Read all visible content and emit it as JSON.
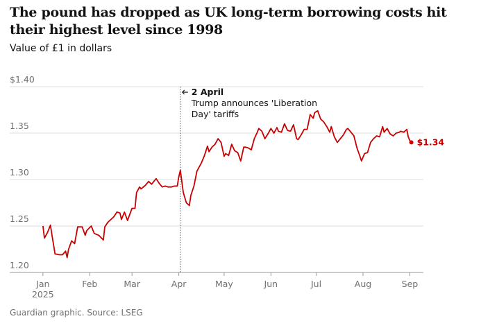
{
  "chart_data": {
    "type": "line",
    "title": "The pound has dropped as UK long-term borrowing costs hit their highest level since 1998",
    "subtitle": "Value of £1 in dollars",
    "source": "Guardian graphic. Source: LSEG",
    "color": "#c70000",
    "grid": true,
    "x": [
      0,
      1,
      3,
      5,
      6,
      8,
      11,
      13,
      15,
      16,
      17,
      19,
      21,
      23,
      26,
      28,
      29,
      32,
      34,
      37,
      40,
      41,
      43,
      45,
      47,
      49,
      51,
      52,
      54,
      56,
      59,
      61,
      62,
      64,
      65,
      68,
      70,
      72,
      74,
      75,
      77,
      79,
      81,
      83,
      85,
      87,
      89,
      90,
      91,
      93,
      95,
      97,
      98,
      100,
      102,
      105,
      107,
      109,
      110,
      112,
      114,
      116,
      118,
      120,
      121,
      123,
      125,
      127,
      129,
      131,
      133,
      134,
      136,
      138,
      140,
      142,
      143,
      145,
      147,
      149,
      151,
      153,
      155,
      156,
      158,
      160,
      162,
      164,
      166,
      168,
      169,
      171,
      173,
      175,
      177,
      179,
      180,
      182,
      184,
      186,
      188,
      190,
      191,
      193,
      195,
      197,
      199,
      201,
      202,
      204,
      206,
      208,
      210,
      211,
      213,
      215,
      217,
      219,
      221,
      223,
      225,
      226,
      228,
      230,
      232,
      234,
      236,
      237,
      239,
      241,
      242,
      243,
      244
    ],
    "values": [
      1.25,
      1.237,
      1.243,
      1.251,
      1.24,
      1.22,
      1.219,
      1.219,
      1.223,
      1.216,
      1.225,
      1.234,
      1.231,
      1.249,
      1.249,
      1.24,
      1.245,
      1.25,
      1.242,
      1.24,
      1.235,
      1.249,
      1.254,
      1.257,
      1.26,
      1.265,
      1.264,
      1.257,
      1.265,
      1.256,
      1.269,
      1.269,
      1.286,
      1.292,
      1.29,
      1.294,
      1.298,
      1.295,
      1.299,
      1.301,
      1.296,
      1.292,
      1.293,
      1.292,
      1.292,
      1.293,
      1.293,
      1.303,
      1.31,
      1.286,
      1.275,
      1.272,
      1.283,
      1.293,
      1.309,
      1.318,
      1.326,
      1.336,
      1.33,
      1.335,
      1.338,
      1.344,
      1.34,
      1.325,
      1.328,
      1.326,
      1.338,
      1.331,
      1.329,
      1.32,
      1.335,
      1.335,
      1.334,
      1.332,
      1.344,
      1.351,
      1.355,
      1.352,
      1.344,
      1.349,
      1.355,
      1.35,
      1.356,
      1.352,
      1.351,
      1.36,
      1.353,
      1.352,
      1.359,
      1.344,
      1.343,
      1.348,
      1.354,
      1.354,
      1.37,
      1.366,
      1.372,
      1.374,
      1.365,
      1.362,
      1.357,
      1.351,
      1.357,
      1.346,
      1.34,
      1.344,
      1.348,
      1.354,
      1.355,
      1.351,
      1.347,
      1.334,
      1.325,
      1.32,
      1.328,
      1.329,
      1.34,
      1.344,
      1.347,
      1.346,
      1.357,
      1.351,
      1.355,
      1.349,
      1.347,
      1.35,
      1.351,
      1.352,
      1.351,
      1.354,
      1.346,
      1.342,
      1.34
    ],
    "last_value_label": "$1.34",
    "xlim": [
      -22,
      252
    ],
    "xticks": [
      {
        "value": 0,
        "label": "Jan"
      },
      {
        "value": 31,
        "label": "Feb"
      },
      {
        "value": 59,
        "label": "Mar"
      },
      {
        "value": 90,
        "label": "Apr"
      },
      {
        "value": 120,
        "label": "May"
      },
      {
        "value": 151,
        "label": "Jun"
      },
      {
        "value": 181,
        "label": "Jul"
      },
      {
        "value": 212,
        "label": "Aug"
      },
      {
        "value": 243,
        "label": "Sep"
      }
    ],
    "x_sublabel": "2025",
    "ylim": [
      1.2,
      1.4
    ],
    "yticks": [
      {
        "value": 1.2,
        "label": "1.20"
      },
      1.25,
      {
        "value": 1.3,
        "label": "1.30"
      },
      1.35,
      {
        "value": 1.4,
        "label": "$1.40"
      }
    ],
    "annotation": {
      "x": 91,
      "title": "2 April",
      "lines": [
        "Trump announces 'Liberation",
        "Day' tariffs"
      ]
    }
  }
}
